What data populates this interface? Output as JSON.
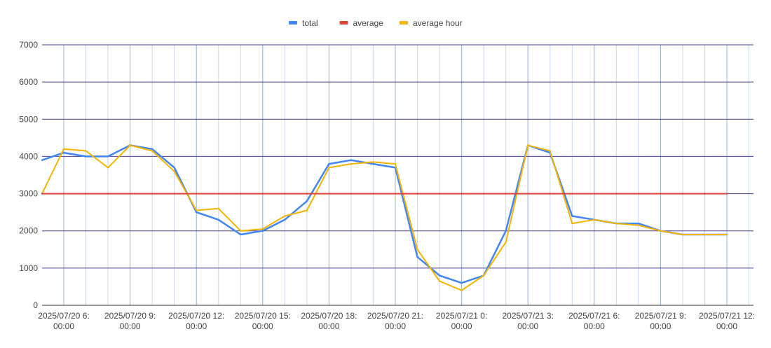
{
  "chart_data": {
    "type": "line",
    "title": "",
    "xlabel": "",
    "ylabel": "",
    "ylim": [
      0,
      7000
    ],
    "grid": true,
    "legend_position": "top-center",
    "y_ticks": [
      0,
      1000,
      2000,
      3000,
      4000,
      5000,
      6000,
      7000
    ],
    "x_ticks": [
      {
        "line1": "2025/07/20 6:",
        "line2": "00:00"
      },
      {
        "line1": "2025/07/20 9:",
        "line2": "00:00"
      },
      {
        "line1": "2025/07/20 12:",
        "line2": "00:00"
      },
      {
        "line1": "2025/07/20 15:",
        "line2": "00:00"
      },
      {
        "line1": "2025/07/20 18:",
        "line2": "00:00"
      },
      {
        "line1": "2025/07/20 21:",
        "line2": "00:00"
      },
      {
        "line1": "2025/07/21 0:",
        "line2": "00:00"
      },
      {
        "line1": "2025/07/21 3:",
        "line2": "00:00"
      },
      {
        "line1": "2025/07/21 6:",
        "line2": "00:00"
      },
      {
        "line1": "2025/07/21 9:",
        "line2": "00:00"
      },
      {
        "line1": "2025/07/21 12:",
        "line2": "00:00"
      }
    ],
    "x": [
      "2025/07/20 5:00",
      "2025/07/20 6:00",
      "2025/07/20 7:00",
      "2025/07/20 8:00",
      "2025/07/20 9:00",
      "2025/07/20 10:00",
      "2025/07/20 11:00",
      "2025/07/20 12:00",
      "2025/07/20 13:00",
      "2025/07/20 14:00",
      "2025/07/20 15:00",
      "2025/07/20 16:00",
      "2025/07/20 17:00",
      "2025/07/20 18:00",
      "2025/07/20 19:00",
      "2025/07/20 20:00",
      "2025/07/20 21:00",
      "2025/07/20 22:00",
      "2025/07/20 23:00",
      "2025/07/21 0:00",
      "2025/07/21 1:00",
      "2025/07/21 2:00",
      "2025/07/21 3:00",
      "2025/07/21 4:00",
      "2025/07/21 5:00",
      "2025/07/21 6:00",
      "2025/07/21 7:00",
      "2025/07/21 8:00",
      "2025/07/21 9:00",
      "2025/07/21 10:00",
      "2025/07/21 11:00",
      "2025/07/21 12:00"
    ],
    "series": [
      {
        "name": "total",
        "color": "#4285f4",
        "values": [
          3900,
          4100,
          4000,
          4000,
          4300,
          4200,
          3700,
          2500,
          2300,
          1900,
          2000,
          2300,
          2800,
          3800,
          3900,
          3800,
          3700,
          1300,
          800,
          600,
          800,
          2000,
          4300,
          4100,
          2400,
          2300,
          2200,
          2200,
          2000,
          1900,
          1900,
          1900
        ]
      },
      {
        "name": "average",
        "color": "#db4437",
        "values": [
          3000,
          3000,
          3000,
          3000,
          3000,
          3000,
          3000,
          3000,
          3000,
          3000,
          3000,
          3000,
          3000,
          3000,
          3000,
          3000,
          3000,
          3000,
          3000,
          3000,
          3000,
          3000,
          3000,
          3000,
          3000,
          3000,
          3000,
          3000,
          3000,
          3000,
          3000,
          3000
        ]
      },
      {
        "name": "average hour",
        "color": "#f4b400",
        "values": [
          3000,
          4200,
          4150,
          3700,
          4300,
          4150,
          3600,
          2550,
          2600,
          2000,
          2050,
          2400,
          2550,
          3700,
          3800,
          3850,
          3800,
          1500,
          650,
          400,
          800,
          1700,
          4300,
          4150,
          2200,
          2300,
          2200,
          2150,
          2000,
          1900,
          1900,
          1900
        ]
      }
    ]
  }
}
